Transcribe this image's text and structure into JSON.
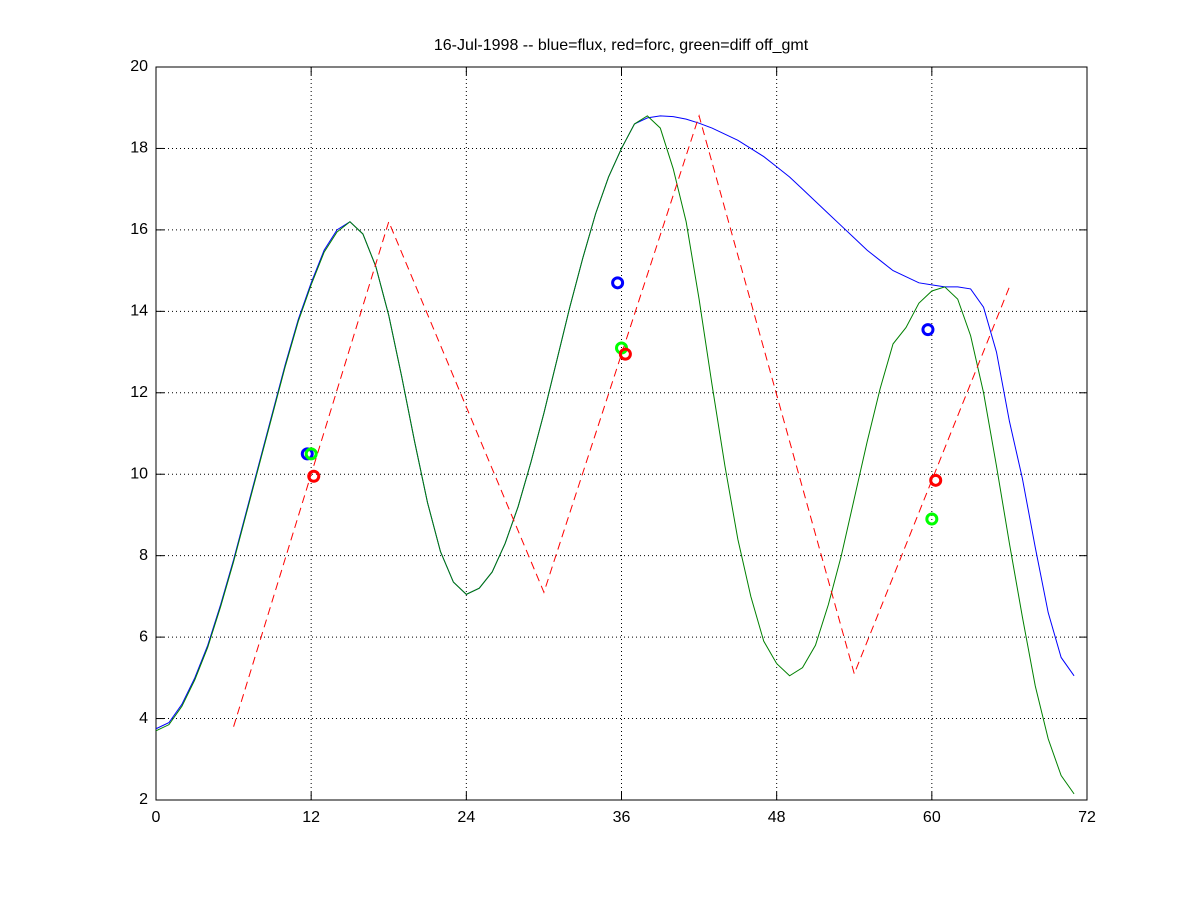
{
  "chart_data": {
    "type": "line",
    "title": "16-Jul-1998 -- blue=flux, red=forc, green=diff off_gmt",
    "xlim": [
      0,
      72
    ],
    "ylim": [
      2,
      20
    ],
    "xticks": [
      0,
      12,
      24,
      36,
      48,
      60,
      72
    ],
    "yticks": [
      2,
      4,
      6,
      8,
      10,
      12,
      14,
      16,
      18,
      20
    ],
    "grid": true,
    "series": [
      {
        "color": "#0000ff",
        "style": "solid",
        "x": [
          0,
          1,
          2,
          3,
          4,
          5,
          6,
          7,
          8,
          9,
          10,
          11,
          12,
          13,
          14,
          15,
          16,
          17,
          18,
          19,
          20,
          21,
          22,
          23,
          24,
          25,
          26,
          27,
          28,
          29,
          30,
          31,
          32,
          33,
          34,
          35,
          36,
          37,
          38,
          39,
          40,
          41,
          42,
          43,
          44,
          45,
          46,
          47,
          48,
          49,
          50,
          51,
          52,
          53,
          54,
          55,
          56,
          57,
          58,
          59,
          60,
          61,
          62,
          63,
          64,
          65,
          66,
          67,
          68,
          69,
          70,
          71
        ],
        "values": [
          3.75,
          3.9,
          4.35,
          5.0,
          5.8,
          6.8,
          7.9,
          9.1,
          10.3,
          11.5,
          12.7,
          13.8,
          14.7,
          15.5,
          16.0,
          16.2,
          15.9,
          15.1,
          13.9,
          12.4,
          10.8,
          9.3,
          8.1,
          7.35,
          7.05,
          7.2,
          7.6,
          8.3,
          9.2,
          10.3,
          11.5,
          12.8,
          14.1,
          15.3,
          16.4,
          17.3,
          18.0,
          18.6,
          18.75,
          18.8,
          18.78,
          18.72,
          18.62,
          18.5,
          18.35,
          18.2,
          18.0,
          17.8,
          17.55,
          17.3,
          17.0,
          16.7,
          16.4,
          16.1,
          15.8,
          15.5,
          15.25,
          15.0,
          14.85,
          14.7,
          14.65,
          14.6,
          14.6,
          14.55,
          14.1,
          13.0,
          11.3,
          9.9,
          8.2,
          6.6,
          5.5,
          5.05
        ]
      },
      {
        "color": "#008000",
        "style": "solid",
        "x": [
          0,
          1,
          2,
          3,
          4,
          5,
          6,
          7,
          8,
          9,
          10,
          11,
          12,
          13,
          14,
          15,
          16,
          17,
          18,
          19,
          20,
          21,
          22,
          23,
          24,
          25,
          26,
          27,
          28,
          29,
          30,
          31,
          32,
          33,
          34,
          35,
          36,
          37,
          38,
          39,
          40,
          41,
          42,
          43,
          44,
          45,
          46,
          47,
          48,
          49,
          50,
          51,
          52,
          53,
          54,
          55,
          56,
          57,
          58,
          59,
          60,
          61,
          62,
          63,
          64,
          65,
          66,
          67,
          68,
          69,
          70,
          71
        ],
        "values": [
          3.7,
          3.85,
          4.3,
          4.95,
          5.75,
          6.75,
          7.85,
          9.05,
          10.25,
          11.45,
          12.65,
          13.75,
          14.65,
          15.45,
          15.95,
          16.2,
          15.9,
          15.1,
          13.9,
          12.4,
          10.8,
          9.3,
          8.1,
          7.35,
          7.05,
          7.2,
          7.6,
          8.3,
          9.2,
          10.3,
          11.5,
          12.8,
          14.1,
          15.3,
          16.4,
          17.3,
          18.0,
          18.6,
          18.8,
          18.5,
          17.5,
          16.2,
          14.3,
          12.2,
          10.2,
          8.4,
          7.0,
          5.9,
          5.35,
          5.05,
          5.25,
          5.8,
          6.8,
          8.0,
          9.4,
          10.8,
          12.1,
          13.2,
          13.6,
          14.2,
          14.5,
          14.6,
          14.3,
          13.4,
          12.0,
          10.2,
          8.3,
          6.5,
          4.8,
          3.5,
          2.6,
          2.15
        ]
      },
      {
        "color": "#ff0000",
        "style": "dashed",
        "x": [
          6,
          18,
          30,
          42,
          54,
          66
        ],
        "values": [
          3.8,
          16.2,
          7.1,
          18.8,
          5.1,
          14.6
        ]
      },
      {
        "color": "#0000ff",
        "style": "markers",
        "x": [
          11.7,
          35.7,
          59.7
        ],
        "values": [
          10.5,
          14.7,
          13.55
        ]
      },
      {
        "color": "#00ff00",
        "style": "markers",
        "x": [
          12.0,
          36.0,
          60.0
        ],
        "values": [
          10.5,
          13.1,
          8.9
        ]
      },
      {
        "color": "#ff0000",
        "style": "markers",
        "x": [
          12.2,
          36.3,
          60.3
        ],
        "values": [
          9.95,
          12.95,
          9.85
        ]
      }
    ]
  }
}
